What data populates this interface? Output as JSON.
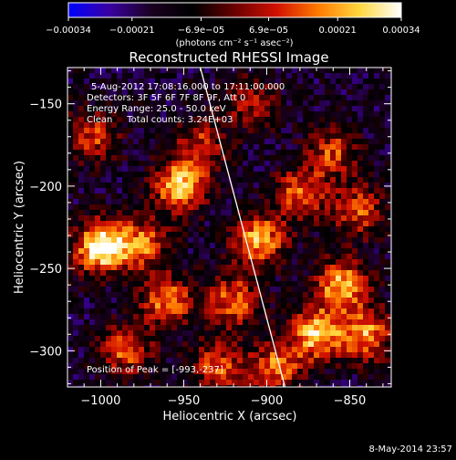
{
  "chart_data": {
    "type": "heatmap",
    "title": "Reconstructed RHESSI Image",
    "xlabel": "Heliocentric X (arcsec)",
    "ylabel": "Heliocentric Y (arcsec)",
    "xlim": [
      -1020,
      -825
    ],
    "ylim": [
      -322,
      -128
    ],
    "xticks": [
      -1000,
      -950,
      -900,
      -850
    ],
    "yticks": [
      -150,
      -200,
      -250,
      -300
    ],
    "colorbar": {
      "ticks": [
        "-0.00034",
        "-0.00021",
        "-6.9e-05",
        "6.9e-05",
        "0.00021",
        "0.00034"
      ],
      "range": [
        -0.00034,
        0.00034
      ],
      "unit_label": "(photons cm⁻² s⁻¹ asec⁻²)",
      "colormap": [
        "#0000ff",
        "#3a00a0",
        "#1a0020",
        "#000000",
        "#6a0000",
        "#d01000",
        "#ff7a00",
        "#ffd840",
        "#ffffff"
      ]
    },
    "annotations": [
      "5-Aug-2012 17:08:16.000 to 17:11:00.000",
      "Detectors: 3F 5F 6F 7F 8F 9F, Att 0",
      "Energy Range: 25.0 - 50.0 keV",
      "Clean     Total counts: 3.24E+03"
    ],
    "peak_label": "Position of Peak = [-993,-237]",
    "peak": [
      -993,
      -237
    ],
    "limb_line": [
      [
        -940,
        -128
      ],
      [
        -889,
        -322
      ]
    ],
    "hotspots": [
      {
        "x": -1000,
        "y": -237,
        "v": 1.0
      },
      {
        "x": -952,
        "y": -200,
        "v": 0.8
      },
      {
        "x": -905,
        "y": -233,
        "v": 0.75
      },
      {
        "x": -855,
        "y": -260,
        "v": 0.75
      },
      {
        "x": -870,
        "y": -290,
        "v": 0.8
      },
      {
        "x": -840,
        "y": -290,
        "v": 0.7
      },
      {
        "x": -960,
        "y": -270,
        "v": 0.65
      },
      {
        "x": -920,
        "y": -270,
        "v": 0.6
      },
      {
        "x": -985,
        "y": -300,
        "v": 0.55
      },
      {
        "x": -880,
        "y": -205,
        "v": 0.6
      },
      {
        "x": -845,
        "y": -215,
        "v": 0.55
      },
      {
        "x": -930,
        "y": -310,
        "v": 0.55
      },
      {
        "x": -1005,
        "y": -170,
        "v": 0.5
      },
      {
        "x": -940,
        "y": -175,
        "v": 0.45
      },
      {
        "x": -895,
        "y": -310,
        "v": 0.6
      },
      {
        "x": -860,
        "y": -180,
        "v": 0.5
      },
      {
        "x": -975,
        "y": -235,
        "v": 0.6
      },
      {
        "x": -910,
        "y": -150,
        "v": 0.4
      }
    ]
  },
  "footer": {
    "date": "8-May-2014 23:57"
  }
}
